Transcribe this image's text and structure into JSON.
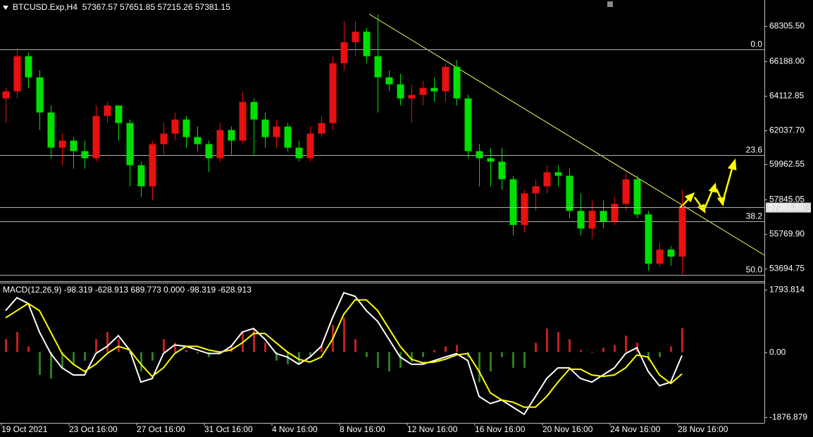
{
  "chart_data": [
    {
      "type": "candlestick",
      "title": "BTCUSD.Exp,H4  57367.57 57651.85 57215.26 57381.15",
      "up_color": "#e81010",
      "down_color": "#00e000",
      "open": [
        63943,
        64367,
        66484,
        65214,
        63096,
        60979,
        61402,
        60767,
        60343,
        62884,
        63520,
        62461,
        59920,
        58649,
        61190,
        61826,
        62673,
        61614,
        61190,
        60343,
        62037,
        61402,
        63731,
        62673,
        61614,
        62249,
        60979,
        60343,
        61826,
        62461,
        66061,
        67331,
        67966,
        66484,
        65214,
        64790,
        63943,
        64155,
        64578,
        64367,
        65849,
        63943,
        60767,
        60343,
        60132,
        59073,
        56320,
        58226,
        58649,
        59496,
        59285,
        57167,
        56108,
        57167,
        56532,
        57591,
        59073,
        56955,
        53991,
        54838,
        54414
      ],
      "high": [
        64578,
        66992,
        66696,
        65637,
        63520,
        61826,
        61614,
        61402,
        63520,
        63731,
        63520,
        62673,
        60132,
        61402,
        62461,
        63096,
        62884,
        62249,
        61402,
        62461,
        62249,
        64367,
        63943,
        63096,
        62673,
        62461,
        61402,
        62249,
        62884,
        66484,
        68602,
        68602,
        68178,
        69025,
        65637,
        65426,
        64790,
        65002,
        65214,
        66061,
        66272,
        64155,
        61190,
        60979,
        60979,
        59285,
        58437,
        59073,
        59920,
        59920,
        59708,
        58226,
        57802,
        57802,
        58014,
        59496,
        59285,
        57167,
        55261,
        55050,
        58437
      ],
      "low": [
        62461,
        63943,
        64578,
        62037,
        60343,
        59920,
        59708,
        59708,
        60132,
        62461,
        61402,
        58649,
        58014,
        57802,
        60555,
        61402,
        60979,
        60767,
        59496,
        60132,
        60555,
        61190,
        60555,
        60979,
        60979,
        60767,
        60132,
        60132,
        61614,
        62037,
        65637,
        66484,
        66061,
        63096,
        64367,
        63520,
        62461,
        63520,
        63731,
        63731,
        63520,
        60343,
        58649,
        58649,
        58437,
        55685,
        55897,
        57167,
        58226,
        58649,
        56744,
        55685,
        55473,
        56108,
        56320,
        57167,
        56744,
        53567,
        53779,
        53864,
        53356
      ],
      "close": [
        64367,
        66484,
        65214,
        63096,
        60979,
        61402,
        60767,
        60343,
        62884,
        63520,
        62461,
        59920,
        58649,
        61190,
        61826,
        62673,
        61614,
        61190,
        60343,
        62037,
        61402,
        63731,
        62673,
        61614,
        62249,
        60979,
        60343,
        61826,
        62461,
        66061,
        67331,
        67966,
        66484,
        65214,
        64790,
        63943,
        64155,
        64578,
        64367,
        65849,
        63943,
        60767,
        60343,
        60132,
        59073,
        56320,
        58226,
        58649,
        59496,
        59285,
        57167,
        56108,
        57167,
        56532,
        57591,
        59073,
        56955,
        53991,
        54838,
        54414,
        57381.15
      ],
      "ylim": [
        52975,
        69872
      ],
      "yticks": [
        {
          "value": 68305.5,
          "label": "68305.50"
        },
        {
          "value": 66188,
          "label": "66188.00"
        },
        64112.85,
        {
          "value": 62037.7,
          "label": "62037.70"
        },
        59962.55,
        57845.05,
        {
          "value": 55769.9,
          "label": "55769.90"
        },
        53694.75
      ],
      "fib_levels": [
        {
          "value": 66908,
          "label": "0.0"
        },
        {
          "value": 60513,
          "label": "23.6"
        },
        {
          "value": 56532,
          "label": "38.2"
        },
        {
          "value": 53314,
          "label": "50.0"
        }
      ],
      "fib_color": "#b0b0b0",
      "last_price": 57381.15
    },
    {
      "type": "macd",
      "title": "MACD(12,26,9) -98.319 -628.913 689.773 0.000 -98.319 -628.913",
      "categories": [
        "19 Oct 2021",
        null,
        null,
        null,
        null,
        null,
        "23 Oct 16:00",
        null,
        null,
        null,
        null,
        null,
        "27 Oct 16:00",
        null,
        null,
        null,
        null,
        null,
        "31 Oct 16:00",
        null,
        null,
        null,
        null,
        null,
        "4 Nov 16:00",
        null,
        null,
        null,
        null,
        null,
        "8 Nov 16:00",
        null,
        null,
        null,
        null,
        null,
        "12 Nov 16:00",
        null,
        null,
        null,
        null,
        null,
        "16 Nov 16:00",
        null,
        null,
        null,
        null,
        null,
        "20 Nov 16:00",
        null,
        null,
        null,
        null,
        null,
        "24 Nov 16:00",
        null,
        null,
        null,
        null,
        null,
        "28 Nov 16:00"
      ],
      "series": [
        {
          "color": "#ffffff",
          "values": [
            1195,
            1566,
            1401,
            577,
            -41,
            -453,
            -659,
            -659,
            -41,
            165,
            474,
            62,
            -865,
            -762,
            -41,
            206,
            165,
            62,
            -41,
            -41,
            165,
            577,
            680,
            371,
            -41,
            -144,
            -350,
            -144,
            165,
            989,
            1710,
            1607,
            1195,
            886,
            371,
            -144,
            -350,
            -350,
            -247,
            -144,
            -41,
            -247,
            -1277,
            -1483,
            -1380,
            -1586,
            -1792,
            -1277,
            -762,
            -453,
            -453,
            -762,
            -865,
            -659,
            -453,
            -41,
            124,
            -556,
            -968,
            -865,
            -98.319
          ]
        },
        {
          "color": "#ffff00",
          "values": [
            989,
            1195,
            1401,
            1195,
            577,
            -41,
            -350,
            -556,
            -350,
            -41,
            165,
            62,
            -350,
            -700,
            -453,
            -41,
            165,
            165,
            62,
            0,
            62,
            268,
            536,
            536,
            268,
            0,
            -206,
            -288,
            -144,
            371,
            1092,
            1504,
            1504,
            1195,
            680,
            165,
            -206,
            -309,
            -288,
            -206,
            -82,
            -41,
            -556,
            -1174,
            -1380,
            -1442,
            -1586,
            -1586,
            -1277,
            -865,
            -494,
            -494,
            -659,
            -700,
            -659,
            -453,
            -82,
            -144,
            -659,
            -906,
            -628.913
          ]
        }
      ],
      "histogram": {
        "up_color": "#c81e1e",
        "down_color": "#2e7d1e",
        "values": [
          371,
          577,
          165,
          -659,
          -762,
          -453,
          -350,
          -247,
          371,
          577,
          371,
          -41,
          -556,
          -247,
          371,
          268,
          62,
          -41,
          -144,
          -41,
          165,
          577,
          680,
          268,
          -247,
          -350,
          -350,
          -144,
          165,
          783,
          989,
          371,
          -144,
          -453,
          -556,
          -453,
          -288,
          -144,
          62,
          165,
          206,
          -144,
          -865,
          -556,
          -144,
          -453,
          -453,
          268,
          680,
          577,
          371,
          62,
          0,
          124,
          206,
          474,
          268,
          -247,
          -144,
          165,
          689.773
        ]
      },
      "ylim": [
        -2040,
        1980
      ],
      "yticks": [
        1793.814,
        {
          "value": 0,
          "label": "0.00"
        },
        -1876.879
      ]
    }
  ]
}
